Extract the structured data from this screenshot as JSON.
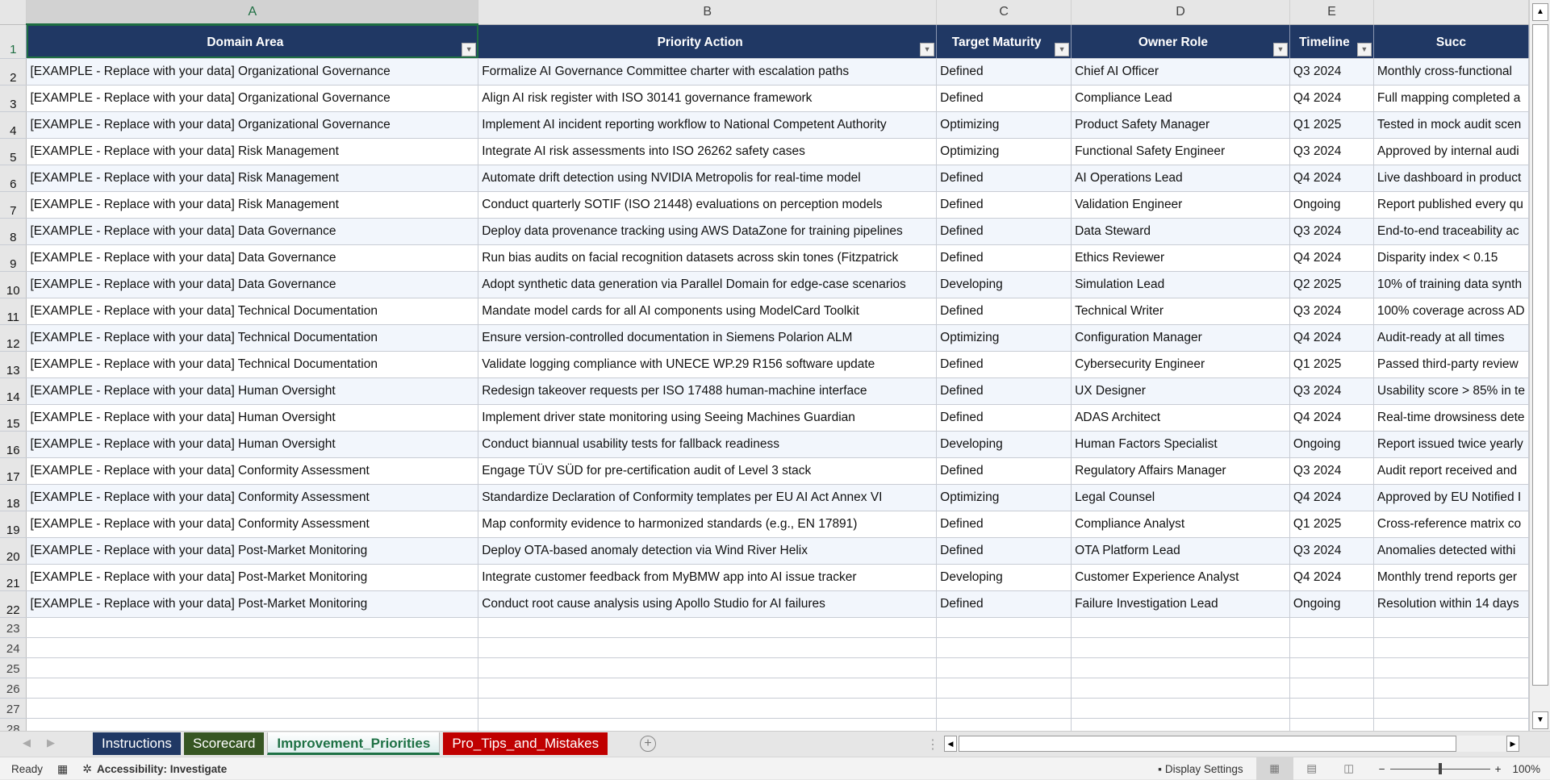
{
  "columns": [
    "A",
    "B",
    "C",
    "D",
    "E",
    ""
  ],
  "headers": [
    "Domain Area",
    "Priority Action",
    "Target Maturity",
    "Owner Role",
    "Timeline",
    "Succ"
  ],
  "rows": [
    [
      "[EXAMPLE - Replace with your data] Organizational Governance",
      "Formalize AI Governance Committee charter with escalation paths",
      "Defined",
      "Chief AI Officer",
      "Q3 2024",
      "Monthly cross-functional"
    ],
    [
      "[EXAMPLE - Replace with your data] Organizational Governance",
      "Align AI risk register with ISO 30141 governance framework",
      "Defined",
      "Compliance Lead",
      "Q4 2024",
      "Full mapping completed a"
    ],
    [
      "[EXAMPLE - Replace with your data] Organizational Governance",
      "Implement AI incident reporting workflow to National Competent Authority",
      "Optimizing",
      "Product Safety Manager",
      "Q1 2025",
      "Tested in mock audit scen"
    ],
    [
      "[EXAMPLE - Replace with your data] Risk Management",
      "Integrate AI risk assessments into ISO 26262 safety cases",
      "Optimizing",
      "Functional Safety Engineer",
      "Q3 2024",
      "Approved by internal audi"
    ],
    [
      "[EXAMPLE - Replace with your data] Risk Management",
      "Automate drift detection using NVIDIA Metropolis for real-time model",
      "Defined",
      "AI Operations Lead",
      "Q4 2024",
      "Live dashboard in product"
    ],
    [
      "[EXAMPLE - Replace with your data] Risk Management",
      "Conduct quarterly SOTIF (ISO 21448) evaluations on perception models",
      "Defined",
      "Validation Engineer",
      "Ongoing",
      "Report published every qu"
    ],
    [
      "[EXAMPLE - Replace with your data] Data Governance",
      "Deploy data provenance tracking using AWS DataZone for training pipelines",
      "Defined",
      "Data Steward",
      "Q3 2024",
      "End-to-end traceability ac"
    ],
    [
      "[EXAMPLE - Replace with your data] Data Governance",
      "Run bias audits on facial recognition datasets across skin tones (Fitzpatrick",
      "Defined",
      "Ethics Reviewer",
      "Q4 2024",
      "Disparity index < 0.15"
    ],
    [
      "[EXAMPLE - Replace with your data] Data Governance",
      "Adopt synthetic data generation via Parallel Domain for edge-case scenarios",
      "Developing",
      "Simulation Lead",
      "Q2 2025",
      "10% of training data synth"
    ],
    [
      "[EXAMPLE - Replace with your data] Technical Documentation",
      "Mandate model cards for all AI components using ModelCard Toolkit",
      "Defined",
      "Technical Writer",
      "Q3 2024",
      "100% coverage across AD"
    ],
    [
      "[EXAMPLE - Replace with your data] Technical Documentation",
      "Ensure version-controlled documentation in Siemens Polarion ALM",
      "Optimizing",
      "Configuration Manager",
      "Q4 2024",
      "Audit-ready at all times"
    ],
    [
      "[EXAMPLE - Replace with your data] Technical Documentation",
      "Validate logging compliance with UNECE WP.29 R156 software update",
      "Defined",
      "Cybersecurity Engineer",
      "Q1 2025",
      "Passed third-party review"
    ],
    [
      "[EXAMPLE - Replace with your data] Human Oversight",
      "Redesign takeover requests per ISO 17488 human-machine interface",
      "Defined",
      "UX Designer",
      "Q3 2024",
      "Usability score > 85% in te"
    ],
    [
      "[EXAMPLE - Replace with your data] Human Oversight",
      "Implement driver state monitoring using Seeing Machines Guardian",
      "Defined",
      "ADAS Architect",
      "Q4 2024",
      "Real-time drowsiness dete"
    ],
    [
      "[EXAMPLE - Replace with your data] Human Oversight",
      "Conduct biannual usability tests for fallback readiness",
      "Developing",
      "Human Factors Specialist",
      "Ongoing",
      "Report issued twice yearly"
    ],
    [
      "[EXAMPLE - Replace with your data] Conformity Assessment",
      "Engage TÜV SÜD for pre-certification audit of Level 3 stack",
      "Defined",
      "Regulatory Affairs Manager",
      "Q3 2024",
      "Audit report received and"
    ],
    [
      "[EXAMPLE - Replace with your data] Conformity Assessment",
      "Standardize Declaration of Conformity templates per EU AI Act Annex VI",
      "Optimizing",
      "Legal Counsel",
      "Q4 2024",
      "Approved by EU Notified I"
    ],
    [
      "[EXAMPLE - Replace with your data] Conformity Assessment",
      "Map conformity evidence to harmonized standards (e.g., EN 17891)",
      "Defined",
      "Compliance Analyst",
      "Q1 2025",
      "Cross-reference matrix co"
    ],
    [
      "[EXAMPLE - Replace with your data] Post-Market Monitoring",
      "Deploy OTA-based anomaly detection via Wind River Helix",
      "Defined",
      "OTA Platform Lead",
      "Q3 2024",
      "Anomalies detected withi"
    ],
    [
      "[EXAMPLE - Replace with your data] Post-Market Monitoring",
      "Integrate customer feedback from MyBMW app into AI issue tracker",
      "Developing",
      "Customer Experience Analyst",
      "Q4 2024",
      "Monthly trend reports ger"
    ],
    [
      "[EXAMPLE - Replace with your data] Post-Market Monitoring",
      "Conduct root cause analysis using Apollo Studio for AI failures",
      "Defined",
      "Failure Investigation Lead",
      "Ongoing",
      "Resolution within 14 days"
    ]
  ],
  "empty_row_numbers": [
    "23",
    "24",
    "25",
    "26",
    "27",
    "28"
  ],
  "sheet_tabs": [
    {
      "label": "Instructions",
      "color": "#203864"
    },
    {
      "label": "Scorecard",
      "color": "#375623"
    },
    {
      "label": "Improvement_Priorities",
      "color": "#1e7145",
      "active": true
    },
    {
      "label": "Pro_Tips_and_Mistakes",
      "color": "#c00000"
    }
  ],
  "status": {
    "ready": "Ready",
    "accessibility": "Accessibility: Investigate",
    "display_settings": "Display Settings",
    "zoom": "100%",
    "zoom_minus": "−",
    "zoom_plus": "+"
  },
  "colors": {
    "header_bg": "#203864",
    "alt_row": "#f2f6fc",
    "selection": "#1e6e42"
  }
}
